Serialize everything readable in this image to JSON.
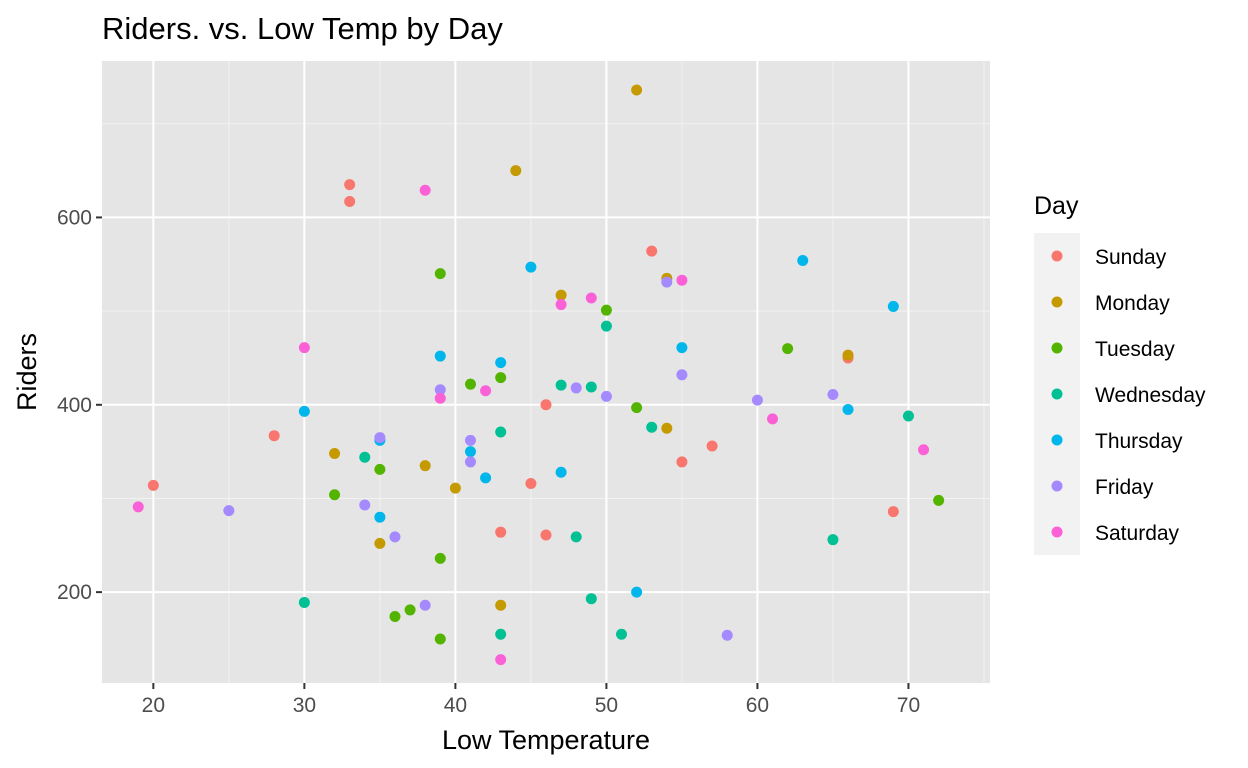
{
  "chart_data": {
    "type": "scatter",
    "title": "Riders. vs. Low Temp by Day",
    "xlabel": "Low Temperature",
    "ylabel": "Riders",
    "xlim": [
      16.6,
      75.4
    ],
    "ylim": [
      103,
      767
    ],
    "x_ticks": [
      20,
      30,
      40,
      50,
      60,
      70
    ],
    "y_ticks": [
      200,
      400,
      600
    ],
    "grid": true,
    "background": "#e5e5e5",
    "legend": {
      "title": "Day",
      "position": "right"
    },
    "series": [
      {
        "name": "Sunday",
        "color": "#f8766d",
        "points": [
          [
            20,
            314
          ],
          [
            28,
            367
          ],
          [
            33,
            635
          ],
          [
            33,
            617
          ],
          [
            43,
            264
          ],
          [
            45,
            316
          ],
          [
            46,
            400
          ],
          [
            46,
            261
          ],
          [
            53,
            564
          ],
          [
            55,
            339
          ],
          [
            57,
            356
          ],
          [
            66,
            450
          ],
          [
            69,
            286
          ]
        ]
      },
      {
        "name": "Monday",
        "color": "#c49a00",
        "points": [
          [
            32,
            348
          ],
          [
            35,
            252
          ],
          [
            38,
            335
          ],
          [
            40,
            311
          ],
          [
            43,
            186
          ],
          [
            44,
            650
          ],
          [
            47,
            517
          ],
          [
            52,
            736
          ],
          [
            54,
            535
          ],
          [
            54,
            375
          ],
          [
            66,
            453
          ]
        ]
      },
      {
        "name": "Tuesday",
        "color": "#53b400",
        "points": [
          [
            32,
            304
          ],
          [
            35,
            331
          ],
          [
            36,
            174
          ],
          [
            37,
            181
          ],
          [
            39,
            540
          ],
          [
            39,
            236
          ],
          [
            39,
            150
          ],
          [
            41,
            422
          ],
          [
            43,
            429
          ],
          [
            50,
            501
          ],
          [
            52,
            397
          ],
          [
            62,
            460
          ],
          [
            72,
            298
          ]
        ]
      },
      {
        "name": "Wednesday",
        "color": "#00c094",
        "points": [
          [
            30,
            189
          ],
          [
            34,
            344
          ],
          [
            43,
            371
          ],
          [
            43,
            155
          ],
          [
            47,
            421
          ],
          [
            48,
            259
          ],
          [
            49,
            419
          ],
          [
            49,
            193
          ],
          [
            50,
            484
          ],
          [
            51,
            155
          ],
          [
            53,
            376
          ],
          [
            65,
            256
          ],
          [
            70,
            388
          ]
        ]
      },
      {
        "name": "Thursday",
        "color": "#00b6eb",
        "points": [
          [
            30,
            393
          ],
          [
            35,
            362
          ],
          [
            35,
            280
          ],
          [
            39,
            452
          ],
          [
            41,
            350
          ],
          [
            42,
            322
          ],
          [
            43,
            445
          ],
          [
            45,
            547
          ],
          [
            47,
            328
          ],
          [
            52,
            200
          ],
          [
            55,
            461
          ],
          [
            63,
            554
          ],
          [
            66,
            395
          ],
          [
            69,
            505
          ]
        ]
      },
      {
        "name": "Friday",
        "color": "#a58aff",
        "points": [
          [
            25,
            287
          ],
          [
            34,
            293
          ],
          [
            35,
            365
          ],
          [
            36,
            259
          ],
          [
            38,
            186
          ],
          [
            39,
            416
          ],
          [
            41,
            362
          ],
          [
            41,
            339
          ],
          [
            48,
            418
          ],
          [
            50,
            409
          ],
          [
            54,
            531
          ],
          [
            55,
            432
          ],
          [
            58,
            154
          ],
          [
            60,
            405
          ],
          [
            65,
            411
          ]
        ]
      },
      {
        "name": "Saturday",
        "color": "#fb61d7",
        "points": [
          [
            19,
            291
          ],
          [
            30,
            461
          ],
          [
            38,
            629
          ],
          [
            39,
            407
          ],
          [
            42,
            415
          ],
          [
            43,
            128
          ],
          [
            47,
            507
          ],
          [
            49,
            514
          ],
          [
            55,
            533
          ],
          [
            61,
            385
          ],
          [
            71,
            352
          ]
        ]
      }
    ]
  }
}
